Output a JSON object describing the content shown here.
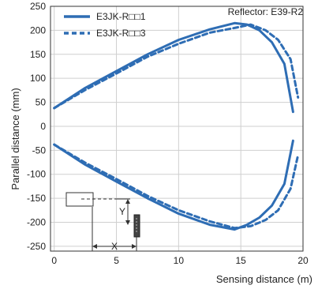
{
  "chart_data": {
    "type": "line",
    "xlabel": "Sensing distance (m)",
    "ylabel": "Parallel distance (mm)",
    "xlim": [
      -0.3,
      20
    ],
    "ylim": [
      -260,
      250
    ],
    "x_ticks": [
      "0",
      "5",
      "10",
      "15",
      "20"
    ],
    "y_ticks": [
      "250",
      "200",
      "150",
      "100",
      "50",
      "0",
      "-50",
      "-100",
      "-150",
      "-200",
      "-250"
    ],
    "grid": true,
    "legend_position": "top-left",
    "annotation": "Reflector: E39-R2",
    "colors": {
      "series": "#2e6db4",
      "grid": "#cfcfcf",
      "axes": "#333333"
    },
    "series": [
      {
        "name": "E3JK-R□□1",
        "style": "solid",
        "upper": [
          [
            0,
            38
          ],
          [
            2.5,
            80
          ],
          [
            5,
            115
          ],
          [
            7.5,
            150
          ],
          [
            10,
            180
          ],
          [
            12.5,
            202
          ],
          [
            14.5,
            215
          ],
          [
            15.5,
            212
          ],
          [
            16.5,
            200
          ],
          [
            17.5,
            175
          ],
          [
            18.5,
            130
          ],
          [
            19.2,
            30
          ]
        ],
        "lower": [
          [
            0,
            -38
          ],
          [
            2.5,
            -80
          ],
          [
            5,
            -115
          ],
          [
            7.5,
            -150
          ],
          [
            10,
            -182
          ],
          [
            12.5,
            -205
          ],
          [
            14.5,
            -215
          ],
          [
            15.5,
            -205
          ],
          [
            16.5,
            -190
          ],
          [
            17.5,
            -165
          ],
          [
            18.5,
            -120
          ],
          [
            19.2,
            -30
          ]
        ]
      },
      {
        "name": "E3JK-R□□3",
        "style": "dashed",
        "upper": [
          [
            0,
            38
          ],
          [
            2.5,
            76
          ],
          [
            5,
            110
          ],
          [
            7.5,
            145
          ],
          [
            10,
            172
          ],
          [
            12.5,
            195
          ],
          [
            14.5,
            205
          ],
          [
            15.8,
            212
          ],
          [
            17,
            200
          ],
          [
            18,
            180
          ],
          [
            19,
            140
          ],
          [
            19.6,
            60
          ]
        ],
        "lower": [
          [
            0,
            -38
          ],
          [
            2.5,
            -76
          ],
          [
            5,
            -110
          ],
          [
            7.5,
            -145
          ],
          [
            10,
            -175
          ],
          [
            12.5,
            -198
          ],
          [
            14.5,
            -212
          ],
          [
            15.8,
            -208
          ],
          [
            17,
            -195
          ],
          [
            18,
            -175
          ],
          [
            19,
            -130
          ],
          [
            19.6,
            -60
          ]
        ]
      }
    ],
    "diagram_labels": {
      "x_arrow": "X",
      "y_arrow": "Y"
    }
  }
}
